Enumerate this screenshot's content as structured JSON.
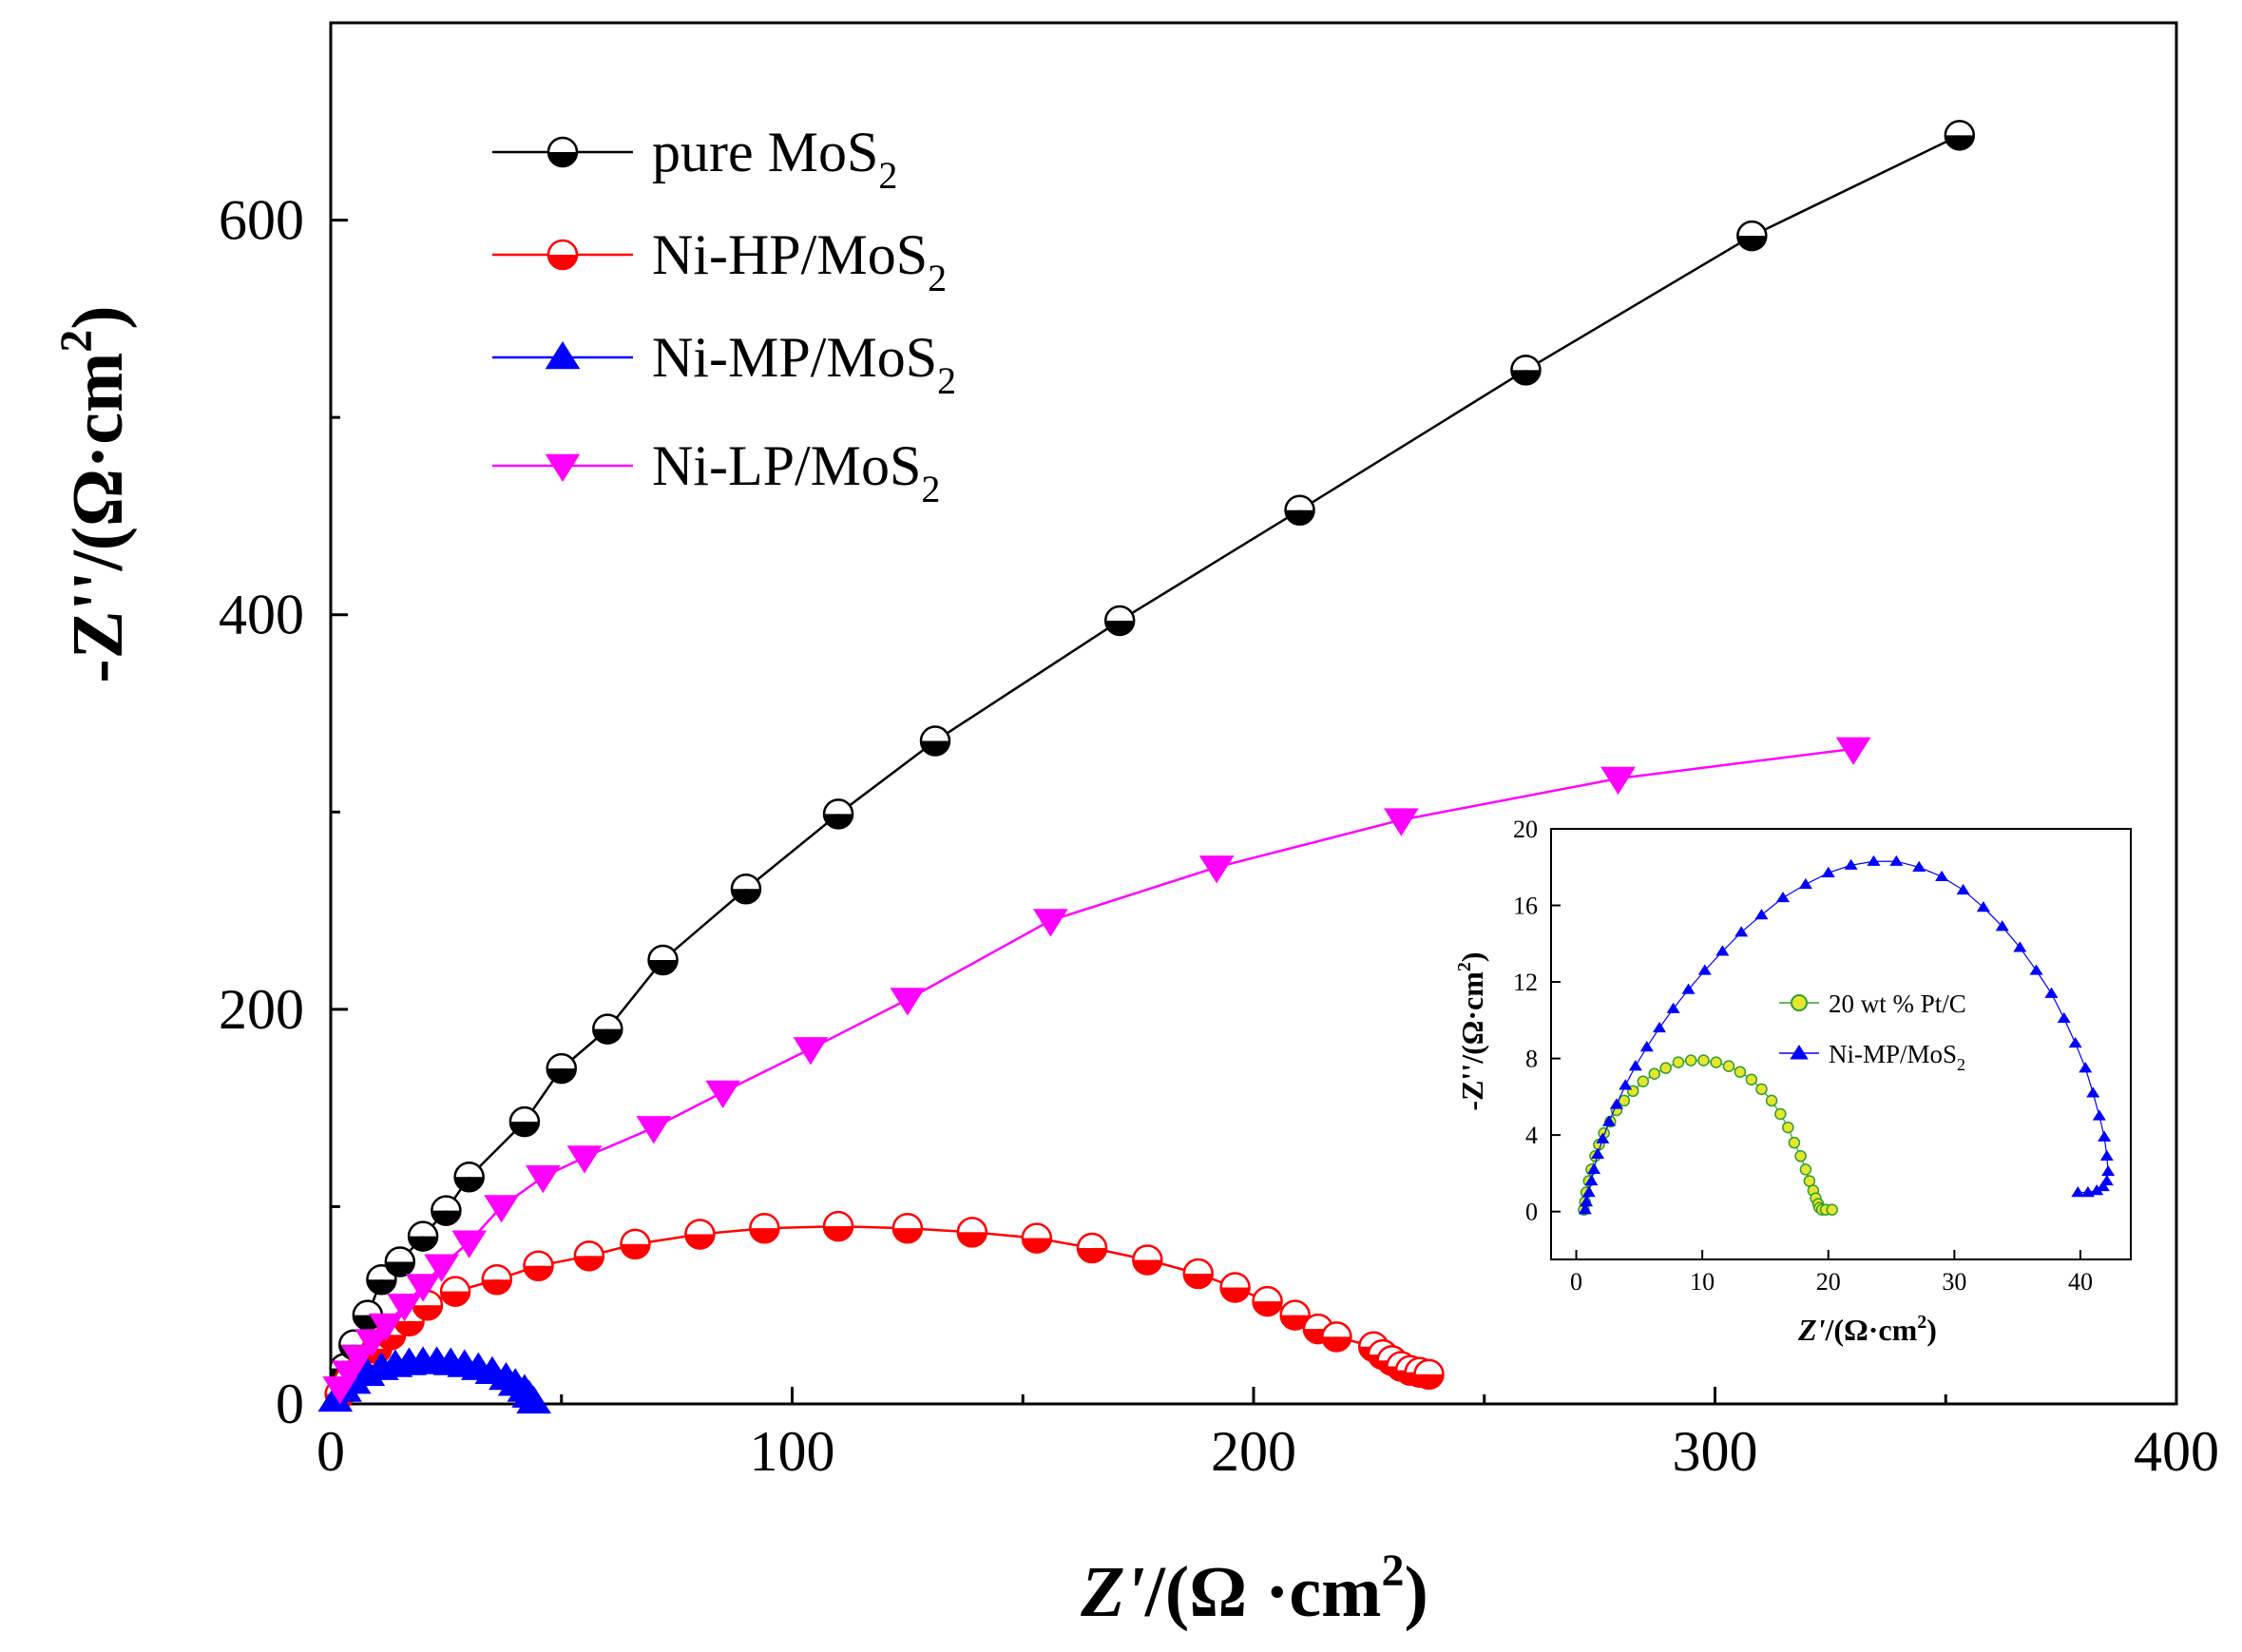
{
  "chart_data": [
    {
      "type": "scatter",
      "role": "main",
      "title": "",
      "xlabel": {
        "main": "Z'",
        "unit": "/(Ω ·cm",
        "sup": "2",
        "close": ")"
      },
      "ylabel": {
        "main": "-Z''",
        "unit": "/(Ω·cm",
        "sup": "2",
        "close": ")"
      },
      "xlim": [
        0,
        400
      ],
      "ylim": [
        0,
        700
      ],
      "xticks": [
        0,
        100,
        200,
        300,
        400
      ],
      "yticks": [
        0,
        200,
        400,
        600
      ],
      "legend_position": "top-left",
      "series": [
        {
          "name": "pure MoS",
          "sub": "2",
          "color": "#000000",
          "marker": "circle-half",
          "x": [
            3,
            5,
            8,
            11,
            15,
            20,
            25,
            30,
            42,
            50,
            60,
            72,
            90,
            110,
            131,
            171,
            210,
            259,
            308,
            353
          ],
          "y": [
            18,
            30,
            45,
            63,
            72,
            85,
            98,
            115,
            143,
            170,
            190,
            225,
            261,
            299,
            336,
            397,
            453,
            524,
            592,
            643
          ]
        },
        {
          "name": "Ni-HP/MoS",
          "sub": "2",
          "color": "#ff0000",
          "marker": "circle-half",
          "x": [
            2,
            4,
            7,
            10,
            13,
            17,
            21,
            27,
            36,
            45,
            56,
            66,
            80,
            94,
            110,
            125,
            139,
            153,
            165,
            177,
            188,
            196,
            203,
            209,
            214,
            218,
            226,
            228,
            230,
            232,
            234,
            236,
            238
          ],
          "y": [
            5,
            12,
            20,
            28,
            35,
            42,
            50,
            57,
            63,
            70,
            75,
            81,
            86,
            89,
            90,
            89,
            87,
            84,
            79,
            73,
            66,
            59,
            52,
            45,
            38,
            34,
            29,
            25,
            22,
            19,
            17,
            16,
            15
          ]
        },
        {
          "name": "Ni-MP/MoS",
          "sub": "2",
          "color": "#0000ff",
          "marker": "triangle-up",
          "x": [
            1,
            3,
            5,
            8,
            11,
            14,
            17,
            20,
            23,
            26,
            29,
            32,
            35,
            38,
            40,
            42,
            43,
            44
          ],
          "y": [
            2,
            7,
            11,
            15,
            18,
            19.5,
            20.5,
            21,
            21,
            20.5,
            19.5,
            18,
            16,
            13,
            10,
            7,
            4,
            1
          ]
        },
        {
          "name": "Ni-LP/MoS",
          "sub": "2",
          "color": "#ff00ff",
          "marker": "triangle-down",
          "x": [
            2,
            4,
            6,
            9,
            12,
            16,
            20,
            24,
            30,
            37,
            46,
            55,
            70,
            85,
            104,
            125,
            156,
            192,
            232,
            279,
            330
          ],
          "y": [
            8,
            16,
            24,
            32,
            40,
            50,
            60,
            70,
            82,
            100,
            115,
            125,
            140,
            158,
            180,
            205,
            245,
            272,
            296,
            317,
            332
          ]
        }
      ]
    },
    {
      "type": "scatter",
      "role": "inset",
      "xlabel": {
        "main": "Z'",
        "unit": "/(Ω·cm",
        "sup": "2",
        "close": ")"
      },
      "ylabel": {
        "main": "-Z''",
        "unit": "/(Ω·cm",
        "sup": "2",
        "close": ")"
      },
      "xlim": [
        -2,
        44
      ],
      "ylim": [
        -2.5,
        20
      ],
      "xticks": [
        0,
        10,
        20,
        30,
        40
      ],
      "yticks": [
        0,
        4,
        8,
        12,
        16,
        20
      ],
      "legend_position": "center-right",
      "series": [
        {
          "name": "20 wt % Pt/C",
          "sub": "",
          "color": "#2e9e2e",
          "fill": "#e6e62e",
          "marker": "circle",
          "x": [
            0.6,
            0.7,
            0.8,
            1.0,
            1.2,
            1.5,
            1.8,
            2.2,
            2.7,
            3.2,
            3.8,
            4.5,
            5.3,
            6.2,
            7.1,
            8.1,
            9.1,
            10.1,
            11.1,
            12.1,
            13.0,
            13.9,
            14.7,
            15.5,
            16.2,
            16.8,
            17.3,
            17.8,
            18.2,
            18.5,
            18.8,
            19.0,
            19.2,
            19.3,
            19.5,
            19.8,
            20.3
          ],
          "y": [
            0.1,
            0.5,
            1.0,
            1.6,
            2.2,
            2.9,
            3.5,
            4.1,
            4.7,
            5.3,
            5.8,
            6.3,
            6.8,
            7.2,
            7.5,
            7.8,
            7.9,
            7.9,
            7.8,
            7.6,
            7.3,
            6.9,
            6.4,
            5.8,
            5.1,
            4.4,
            3.6,
            2.9,
            2.2,
            1.6,
            1.1,
            0.7,
            0.4,
            0.2,
            0.1,
            0.1,
            0.1
          ]
        },
        {
          "name": "Ni-MP/MoS",
          "sub": "2",
          "color": "#0000ff",
          "marker": "triangle-up",
          "x": [
            0.7,
            0.8,
            1.0,
            1.2,
            1.4,
            1.7,
            2.1,
            2.6,
            3.2,
            3.9,
            4.7,
            5.6,
            6.6,
            7.7,
            8.9,
            10.2,
            11.6,
            13.1,
            14.7,
            16.4,
            18.2,
            20.0,
            21.8,
            23.6,
            25.4,
            27.2,
            29.0,
            30.7,
            32.3,
            33.8,
            35.2,
            36.5,
            37.7,
            38.7,
            39.6,
            40.4,
            41.0,
            41.5,
            41.9,
            42.1,
            42.2,
            42.1,
            41.8,
            41.3,
            40.6,
            39.8
          ],
          "y": [
            0.1,
            0.5,
            1.0,
            1.6,
            2.2,
            3.0,
            3.8,
            4.7,
            5.6,
            6.6,
            7.6,
            8.6,
            9.6,
            10.6,
            11.6,
            12.6,
            13.6,
            14.6,
            15.5,
            16.4,
            17.1,
            17.7,
            18.1,
            18.3,
            18.3,
            18.0,
            17.5,
            16.8,
            15.9,
            14.9,
            13.8,
            12.6,
            11.4,
            10.1,
            8.8,
            7.5,
            6.2,
            5.0,
            3.9,
            2.9,
            2.1,
            1.6,
            1.3,
            1.1,
            1.0,
            1.0
          ]
        }
      ]
    }
  ]
}
